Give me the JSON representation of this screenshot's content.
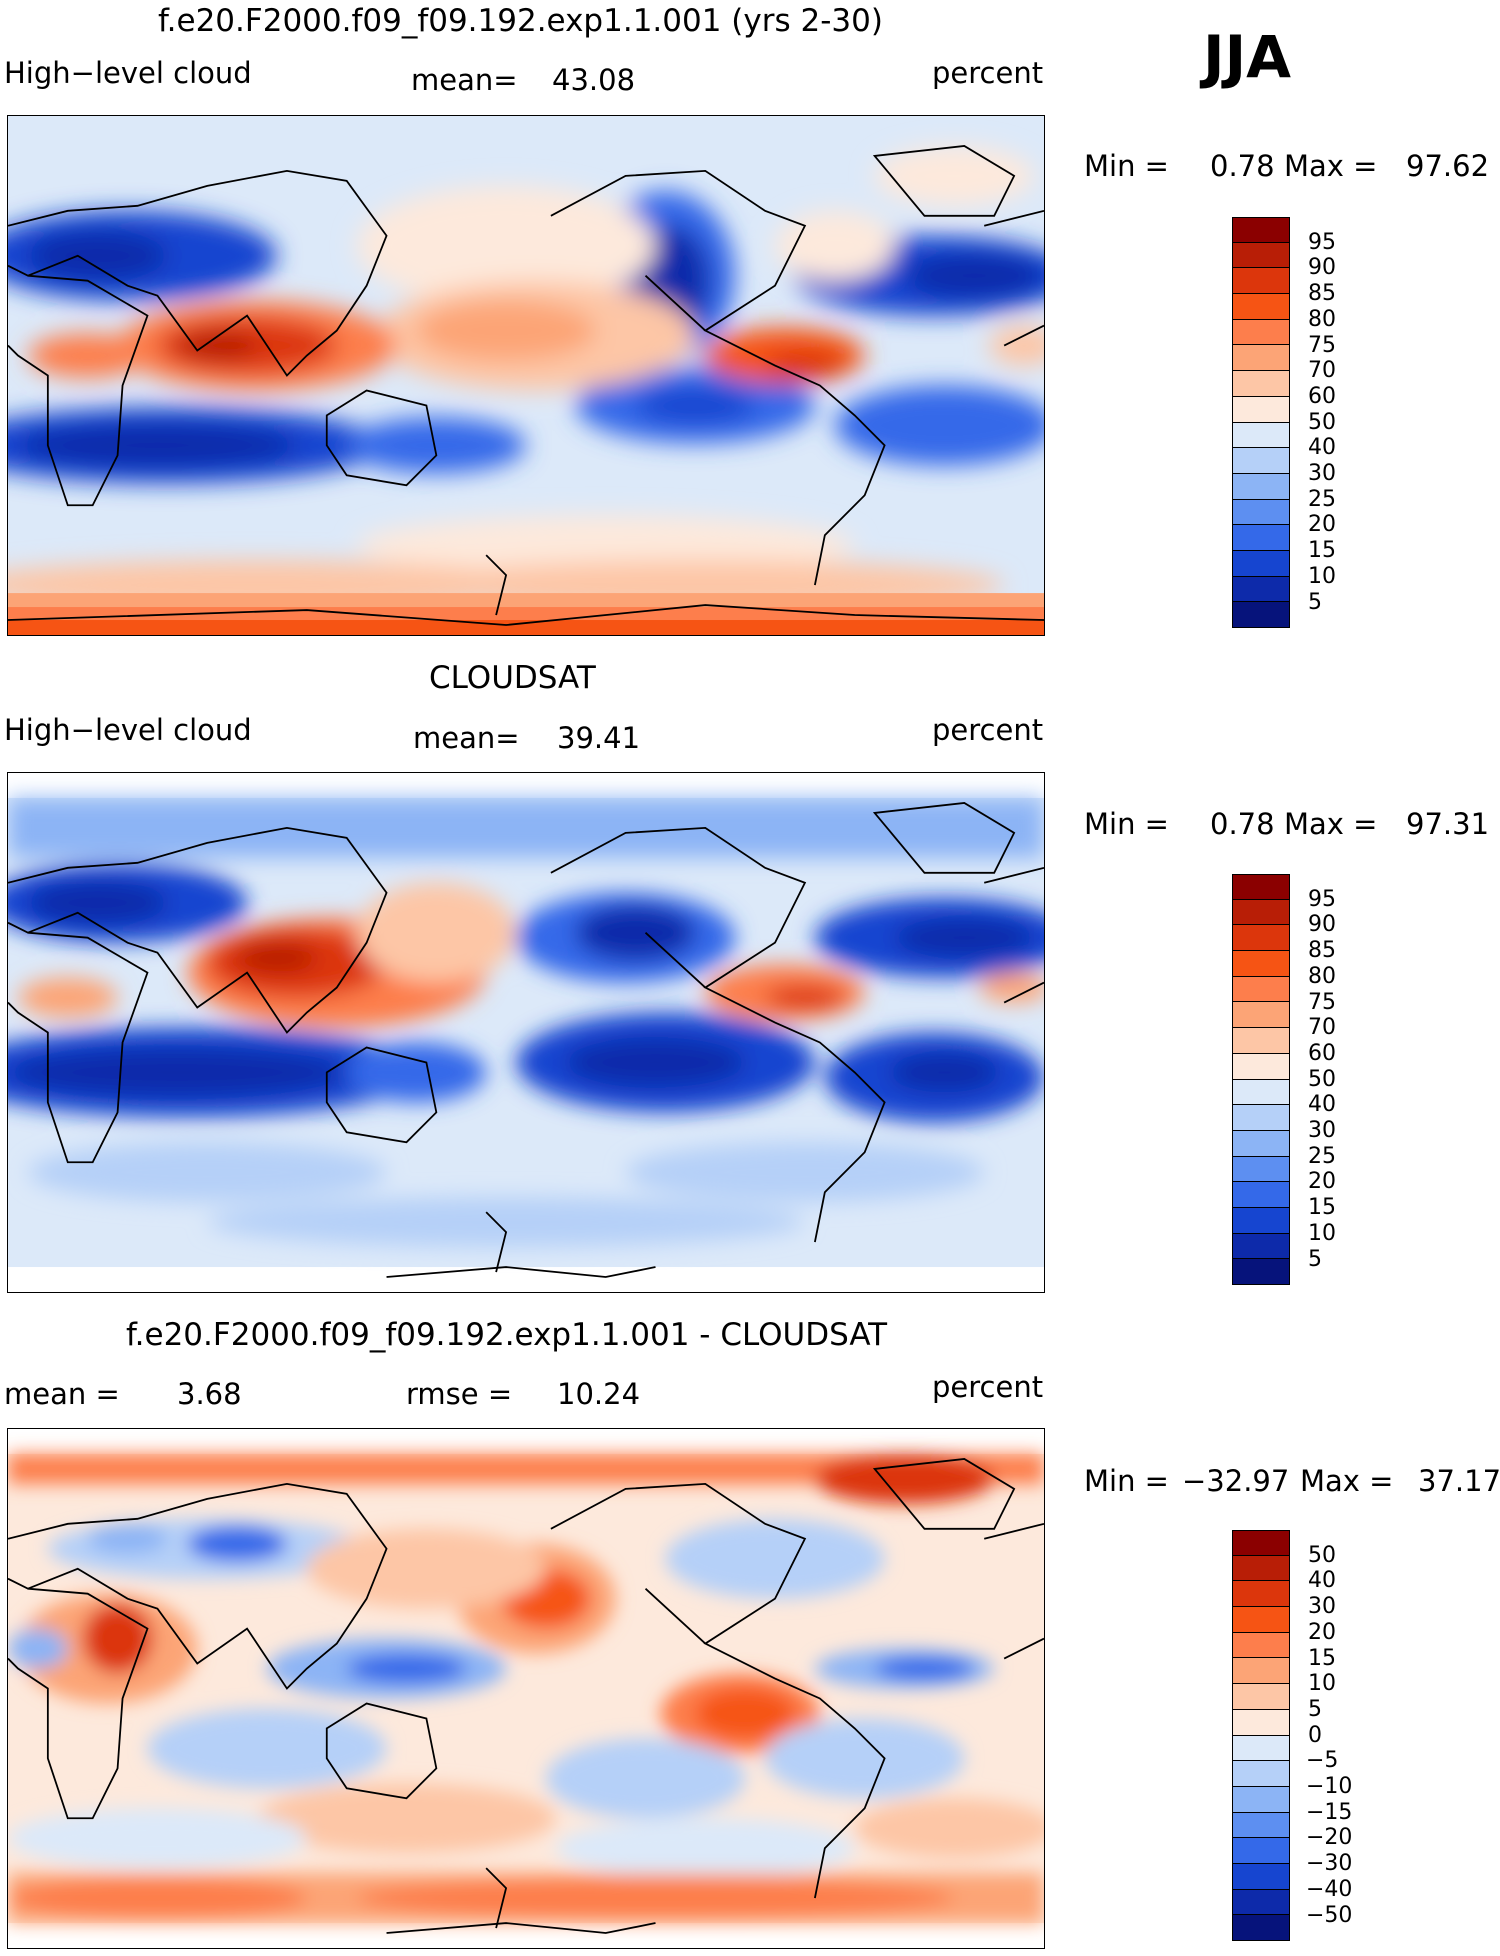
{
  "season": "JJA",
  "panels": [
    {
      "title": "f.e20.F2000.f09_f09.192.exp1.1.001 (yrs 2-30)",
      "left_label": "High−level cloud",
      "stat1_label": "mean=",
      "stat1_value": "43.08",
      "stat2_label": "",
      "stat2_value": "",
      "units": "percent",
      "min_label": "Min =",
      "min_value": "0.78",
      "max_label": "Max =",
      "max_value": "97.62",
      "colorbar": {
        "labels": [
          "95",
          "90",
          "85",
          "80",
          "75",
          "70",
          "60",
          "50",
          "40",
          "30",
          "25",
          "20",
          "15",
          "10",
          "5"
        ],
        "colors": [
          "#8b0000",
          "#b81e06",
          "#dc360c",
          "#f65414",
          "#fd7e4c",
          "#fca476",
          "#fdc6a6",
          "#fde9dc",
          "#dce9f9",
          "#b5d0f8",
          "#8cb4f5",
          "#5d8ff1",
          "#3469e9",
          "#1645d0",
          "#0d2aaa",
          "#06137b"
        ]
      }
    },
    {
      "title": "CLOUDSAT",
      "left_label": "High−level cloud",
      "stat1_label": "mean=",
      "stat1_value": "39.41",
      "stat2_label": "",
      "stat2_value": "",
      "units": "percent",
      "min_label": "Min =",
      "min_value": "0.78",
      "max_label": "Max =",
      "max_value": "97.31",
      "colorbar": {
        "labels": [
          "95",
          "90",
          "85",
          "80",
          "75",
          "70",
          "60",
          "50",
          "40",
          "30",
          "25",
          "20",
          "15",
          "10",
          "5"
        ],
        "colors": [
          "#8b0000",
          "#b81e06",
          "#dc360c",
          "#f65414",
          "#fd7e4c",
          "#fca476",
          "#fdc6a6",
          "#fde9dc",
          "#dce9f9",
          "#b5d0f8",
          "#8cb4f5",
          "#5d8ff1",
          "#3469e9",
          "#1645d0",
          "#0d2aaa",
          "#06137b"
        ]
      }
    },
    {
      "title": "f.e20.F2000.f09_f09.192.exp1.1.001 - CLOUDSAT",
      "left_label": "",
      "stat1_label": "mean =",
      "stat1_value": "3.68",
      "stat2_label": "rmse =",
      "stat2_value": "10.24",
      "units": "percent",
      "min_label": "Min =",
      "min_value": "−32.97",
      "max_label": "Max =",
      "max_value": "37.17",
      "colorbar": {
        "labels": [
          "50",
          "40",
          "30",
          "20",
          "15",
          "10",
          "5",
          "0",
          "−5",
          "−10",
          "−15",
          "−20",
          "−30",
          "−40",
          "−50"
        ],
        "colors": [
          "#8b0000",
          "#b81e06",
          "#dc360c",
          "#f65414",
          "#fd7e4c",
          "#fca476",
          "#fdc6a6",
          "#fde9dc",
          "#dce9f9",
          "#b5d0f8",
          "#8cb4f5",
          "#5d8ff1",
          "#3469e9",
          "#1645d0",
          "#0d2aaa",
          "#06137b"
        ]
      }
    }
  ]
}
